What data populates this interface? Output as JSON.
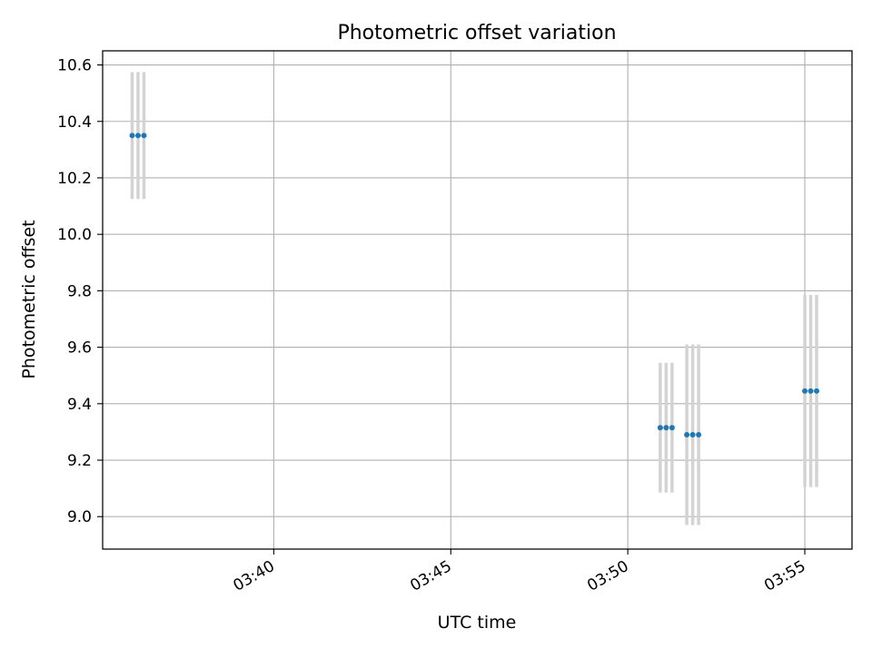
{
  "chart_data": {
    "type": "scatter",
    "title": "Photometric offset variation",
    "xlabel": "UTC time",
    "ylabel": "Photometric offset",
    "xlim": [
      "03:35:10",
      "03:56:20"
    ],
    "ylim": [
      8.885,
      10.65
    ],
    "grid": true,
    "x_ticks": [
      "03:40",
      "03:45",
      "03:50",
      "03:55"
    ],
    "y_ticks": [
      "9.0",
      "9.2",
      "9.4",
      "9.6",
      "9.8",
      "10.0",
      "10.2",
      "10.4",
      "10.6"
    ],
    "series": [
      {
        "marker_color": "#1f77b4",
        "errorbar_color": "#d3d3d3",
        "points": [
          {
            "x": "03:36:00",
            "y": 10.35,
            "yerr": 0.225
          },
          {
            "x": "03:36:10",
            "y": 10.35,
            "yerr": 0.225
          },
          {
            "x": "03:36:20",
            "y": 10.35,
            "yerr": 0.225
          },
          {
            "x": "03:50:55",
            "y": 9.315,
            "yerr": 0.23
          },
          {
            "x": "03:51:05",
            "y": 9.315,
            "yerr": 0.23
          },
          {
            "x": "03:51:15",
            "y": 9.315,
            "yerr": 0.23
          },
          {
            "x": "03:51:40",
            "y": 9.29,
            "yerr": 0.32
          },
          {
            "x": "03:51:50",
            "y": 9.29,
            "yerr": 0.32
          },
          {
            "x": "03:52:00",
            "y": 9.29,
            "yerr": 0.32
          },
          {
            "x": "03:55:00",
            "y": 9.445,
            "yerr": 0.34
          },
          {
            "x": "03:55:10",
            "y": 9.445,
            "yerr": 0.34
          },
          {
            "x": "03:55:20",
            "y": 9.445,
            "yerr": 0.34
          }
        ]
      }
    ]
  }
}
